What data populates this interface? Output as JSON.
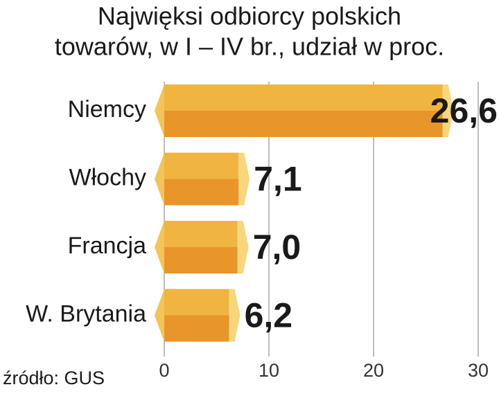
{
  "chart_data": {
    "type": "bar",
    "orientation": "horizontal",
    "title": [
      "Najwięksi odbiorcy polskich",
      "towarów, w I – IV br., udział w proc."
    ],
    "categories": [
      "Niemcy",
      "Włochy",
      "Francja",
      "W. Brytania"
    ],
    "values": [
      26.6,
      7.1,
      7.0,
      6.2
    ],
    "value_labels": [
      "26,6",
      "7,1",
      "7,0",
      "6,2"
    ],
    "color": "#f0b440",
    "xlim": [
      0,
      30
    ],
    "xticks": [
      0,
      10,
      20,
      30
    ],
    "grid": true,
    "source": "źródło: GUS"
  }
}
